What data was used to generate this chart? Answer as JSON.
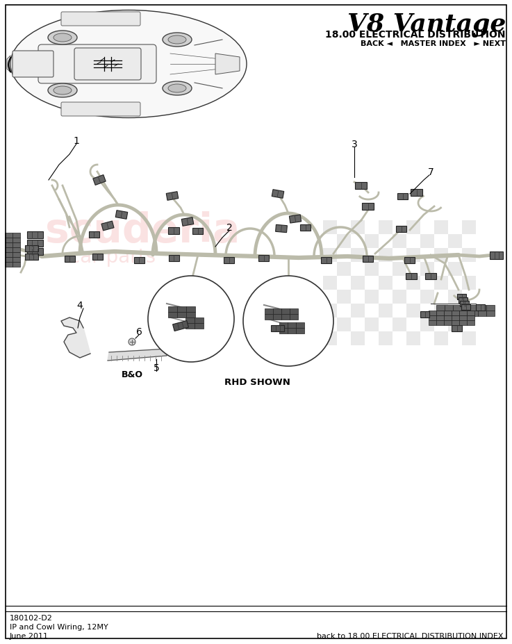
{
  "bg_color": "#FFFFFF",
  "page_width": 7.37,
  "page_height": 9.28,
  "title_text": "V8 Vantage",
  "subtitle_text": "18.00 ELECTRICAL DISTRIBUTION",
  "nav_text": "BACK ◄   MASTER INDEX   ► NEXT",
  "bottom_left_lines": [
    "180102-D2",
    "IP and Cowl Wiring, 12MY",
    "June 2011"
  ],
  "bottom_right_text": "back to 18.00 ELECTRICAL DISTRIBUTION INDEX",
  "rhd_shown_text": "RHD SHOWN",
  "bo_label": "B&O",
  "border_color": "#000000",
  "text_color": "#000000",
  "watermark_pink": "#F2AAAA",
  "watermark_gray": "#C8C8C8",
  "line_color": "#555555",
  "harness_color": "#BBBBAA",
  "connector_color": "#666666"
}
